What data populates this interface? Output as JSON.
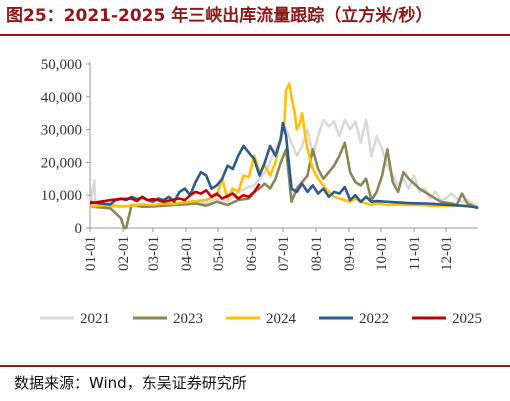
{
  "title": "图25：2021-2025 年三峡出库流量跟踪（立方米/秒）",
  "source": "数据来源：Wind，东吴证券研究所",
  "colors": {
    "s2021": "#d9d9d9",
    "s2023": "#8b8656",
    "s2024": "#ffc000",
    "s2022": "#2e5a8c",
    "s2025": "#c00000",
    "accent": "#8b1a1a",
    "axis": "#999999"
  },
  "chart_data": {
    "type": "line",
    "xlabel": "",
    "ylabel": "",
    "ylim": [
      0,
      50000
    ],
    "yticks": [
      "0",
      "10,000",
      "20,000",
      "30,000",
      "40,000",
      "50,000"
    ],
    "xticks": [
      "01-01",
      "02-01",
      "03-01",
      "04-01",
      "05-01",
      "06-01",
      "07-01",
      "08-01",
      "09-01",
      "10-01",
      "11-01",
      "12-01"
    ],
    "legend_position": "bottom",
    "grid": false,
    "series": [
      {
        "name": "2021",
        "key": "s2021",
        "x": [
          1,
          4,
          5,
          6,
          8,
          10,
          15,
          20,
          30,
          40,
          50,
          60,
          70,
          80,
          90,
          100,
          110,
          120,
          130,
          140,
          150,
          155,
          160,
          165,
          170,
          175,
          180,
          182,
          185,
          190,
          195,
          200,
          205,
          210,
          215,
          220,
          225,
          230,
          235,
          240,
          245,
          250,
          255,
          260,
          265,
          270,
          275,
          280,
          285,
          290,
          295,
          300,
          305,
          310,
          315,
          320,
          325,
          330,
          335,
          340,
          345,
          350,
          355,
          360,
          365
        ],
        "y": [
          6500,
          13000,
          14500,
          8000,
          6800,
          6500,
          6200,
          6500,
          6400,
          6800,
          7200,
          6600,
          6800,
          7200,
          7500,
          8000,
          7500,
          8800,
          8000,
          11000,
          12500,
          13000,
          15000,
          17000,
          20000,
          24000,
          28000,
          32000,
          30000,
          26000,
          22000,
          25000,
          30000,
          22000,
          28000,
          33000,
          31000,
          32500,
          28000,
          33000,
          30000,
          32500,
          26000,
          33000,
          22000,
          28000,
          24000,
          19000,
          16000,
          13000,
          15000,
          12000,
          16000,
          11000,
          12000,
          9000,
          11000,
          8500,
          9000,
          10500,
          9000,
          8000,
          8500,
          7500,
          6500
        ]
      },
      {
        "name": "2023",
        "key": "s2023",
        "x": [
          1,
          10,
          20,
          30,
          33,
          35,
          40,
          50,
          60,
          70,
          80,
          90,
          100,
          110,
          120,
          130,
          140,
          150,
          155,
          160,
          165,
          170,
          175,
          180,
          185,
          190,
          195,
          200,
          205,
          210,
          215,
          220,
          225,
          230,
          235,
          240,
          245,
          250,
          255,
          260,
          265,
          270,
          275,
          280,
          285,
          290,
          295,
          300,
          310,
          320,
          330,
          340,
          345,
          350,
          355,
          360,
          365
        ],
        "y": [
          6500,
          6300,
          6000,
          3000,
          0,
          0,
          7000,
          6500,
          6600,
          6800,
          7000,
          7200,
          7500,
          6800,
          8000,
          7000,
          8500,
          9000,
          11000,
          12000,
          13500,
          12000,
          15000,
          20000,
          24000,
          8000,
          12000,
          14000,
          16000,
          24000,
          18000,
          15000,
          17000,
          19000,
          22000,
          26000,
          17000,
          14000,
          13000,
          15000,
          8500,
          11000,
          16000,
          24000,
          14000,
          11000,
          17000,
          15000,
          12000,
          10000,
          8000,
          7500,
          7000,
          10500,
          7500,
          6800,
          6000
        ]
      },
      {
        "name": "2024",
        "key": "s2024",
        "x": [
          1,
          10,
          20,
          30,
          40,
          50,
          60,
          70,
          80,
          90,
          100,
          110,
          120,
          125,
          130,
          135,
          140,
          145,
          150,
          155,
          160,
          165,
          170,
          175,
          180,
          183,
          185,
          188,
          190,
          193,
          195,
          198,
          200,
          203,
          205,
          210,
          215,
          220,
          225,
          230,
          235,
          240,
          245,
          250,
          255,
          260,
          265,
          270,
          280,
          290,
          300,
          310,
          320,
          330,
          340,
          350,
          360,
          365
        ],
        "y": [
          6500,
          6800,
          7000,
          6600,
          6800,
          7200,
          7000,
          7500,
          7400,
          7800,
          8200,
          8500,
          10000,
          15000,
          9000,
          12000,
          11000,
          16000,
          15500,
          22000,
          17000,
          19000,
          16000,
          20000,
          28000,
          30000,
          42000,
          44000,
          40000,
          35000,
          30000,
          32000,
          35000,
          28000,
          24000,
          18000,
          15000,
          13000,
          11000,
          9500,
          9000,
          8500,
          8000,
          9000,
          8000,
          7500,
          7000,
          7500,
          7000,
          7200,
          7000,
          7000,
          6800,
          6900,
          6700,
          6800,
          6600,
          6500
        ]
      },
      {
        "name": "2022",
        "key": "s2022",
        "x": [
          1,
          10,
          20,
          25,
          30,
          35,
          40,
          45,
          50,
          55,
          60,
          65,
          70,
          75,
          80,
          85,
          90,
          95,
          100,
          105,
          110,
          115,
          120,
          125,
          130,
          135,
          140,
          145,
          150,
          155,
          160,
          165,
          170,
          175,
          180,
          182,
          185,
          190,
          195,
          200,
          205,
          210,
          215,
          220,
          225,
          230,
          235,
          240,
          245,
          250,
          255,
          260,
          265,
          270,
          280,
          290,
          300,
          310,
          320,
          330,
          340,
          350,
          360,
          365
        ],
        "y": [
          8000,
          7500,
          7200,
          8500,
          9000,
          8500,
          9500,
          8800,
          9200,
          8500,
          8000,
          9000,
          8500,
          9500,
          8000,
          11000,
          12000,
          10000,
          14000,
          17000,
          16000,
          12000,
          13000,
          15000,
          19000,
          18000,
          22000,
          25000,
          23000,
          21000,
          16000,
          20000,
          25000,
          22000,
          27000,
          32000,
          28000,
          12000,
          11000,
          13500,
          11000,
          13000,
          10500,
          12000,
          9500,
          11000,
          10500,
          12500,
          8500,
          10000,
          8000,
          9500,
          8000,
          8200,
          8000,
          7800,
          7600,
          7500,
          7400,
          7200,
          7000,
          6800,
          6500,
          6200
        ]
      },
      {
        "name": "2025",
        "key": "s2025",
        "x": [
          1,
          10,
          20,
          30,
          40,
          45,
          50,
          55,
          60,
          65,
          70,
          80,
          85,
          90,
          95,
          100,
          105,
          110,
          115,
          120,
          125,
          130,
          135,
          140,
          145,
          150,
          155,
          160
        ],
        "y": [
          7500,
          8000,
          8500,
          8800,
          9000,
          8200,
          9500,
          8500,
          8800,
          8500,
          8000,
          8700,
          9000,
          8500,
          10000,
          11000,
          10500,
          11500,
          9500,
          10500,
          9000,
          9800,
          10500,
          9000,
          10000,
          9500,
          11000,
          13500
        ]
      }
    ]
  }
}
